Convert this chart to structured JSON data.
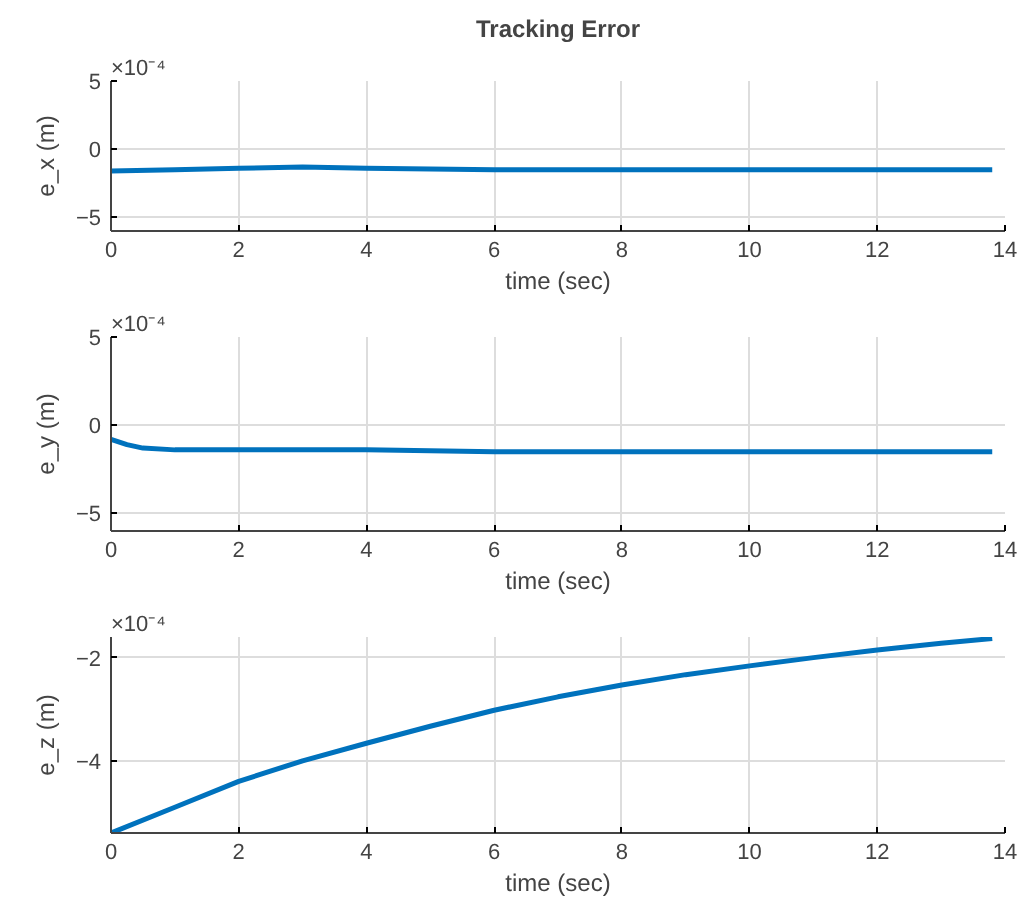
{
  "chart_data": [
    {
      "type": "line",
      "title": "Tracking Error",
      "xlabel": "time (sec)",
      "ylabel": "e_x (m)",
      "annotations": [
        "×10⁻⁴"
      ],
      "x": [
        0,
        1,
        2,
        3,
        4,
        6,
        8,
        10,
        12,
        13.8
      ],
      "series": [
        {
          "color": "#0072bd",
          "values": [
            -1.6,
            -1.5,
            -1.4,
            -1.3,
            -1.4,
            -1.5,
            -1.5,
            -1.5,
            -1.5,
            -1.5
          ]
        }
      ],
      "xlim": [
        0,
        14
      ],
      "xticks": [
        0,
        2,
        4,
        6,
        8,
        10,
        12,
        14
      ],
      "ylim": [
        -6,
        5
      ],
      "yticks": [
        -5,
        0,
        5
      ],
      "grid": true,
      "marker": "none",
      "line_style": "solid"
    },
    {
      "type": "line",
      "xlabel": "time (sec)",
      "ylabel": "e_y (m)",
      "annotations": [
        "×10⁻⁴"
      ],
      "x": [
        0,
        0.25,
        0.5,
        1,
        2,
        4,
        6,
        8,
        10,
        12,
        13.8
      ],
      "series": [
        {
          "color": "#0072bd",
          "values": [
            -0.8,
            -1.1,
            -1.3,
            -1.4,
            -1.4,
            -1.4,
            -1.5,
            -1.5,
            -1.5,
            -1.5,
            -1.5
          ]
        }
      ],
      "xlim": [
        0,
        14
      ],
      "xticks": [
        0,
        2,
        4,
        6,
        8,
        10,
        12,
        14
      ],
      "ylim": [
        -6,
        5
      ],
      "yticks": [
        -5,
        0,
        5
      ],
      "grid": true,
      "marker": "none",
      "line_style": "solid"
    },
    {
      "type": "line",
      "xlabel": "time (sec)",
      "ylabel": "e_z (m)",
      "annotations": [
        "×10⁻⁴"
      ],
      "x": [
        0,
        1,
        2,
        3,
        4,
        5,
        6,
        7,
        8,
        9,
        10,
        11,
        12,
        13,
        13.8
      ],
      "series": [
        {
          "color": "#0072bd",
          "values": [
            -5.4,
            -4.9,
            -4.4,
            -4.0,
            -3.66,
            -3.33,
            -3.02,
            -2.76,
            -2.53,
            -2.33,
            -2.16,
            -2.0,
            -1.85,
            -1.72,
            -1.63
          ]
        }
      ],
      "xlim": [
        0,
        14
      ],
      "xticks": [
        0,
        2,
        4,
        6,
        8,
        10,
        12,
        14
      ],
      "ylim": [
        -5.4,
        -1.6
      ],
      "yticks": [
        -4,
        -2
      ],
      "grid": true,
      "marker": "none",
      "line_style": "solid"
    }
  ]
}
